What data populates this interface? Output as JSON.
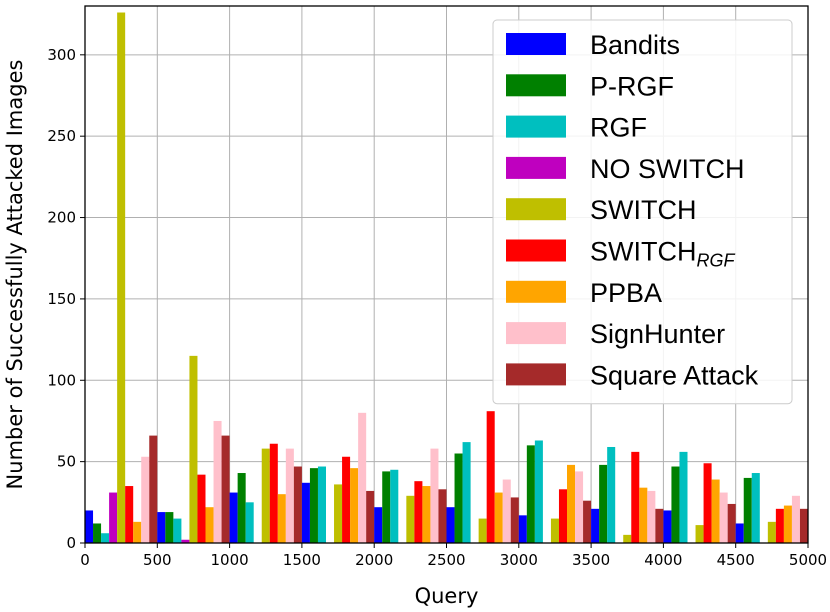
{
  "chart_data": {
    "type": "bar",
    "title": "",
    "xlabel": "Query",
    "ylabel": "Number of Successfully Attacked Images",
    "xlim": [
      0,
      5000
    ],
    "ylim": [
      0,
      330
    ],
    "xticks": [
      "0",
      "500",
      "1000",
      "1500",
      "2000",
      "2500",
      "3000",
      "3500",
      "4000",
      "4500",
      "5000"
    ],
    "yticks": [
      "0",
      "50",
      "100",
      "150",
      "200",
      "250",
      "300"
    ],
    "grid": true,
    "legend_position": "top-right",
    "bin_centers": [
      250,
      750,
      1250,
      1750,
      2250,
      2750,
      3250,
      3750,
      4250,
      4750
    ],
    "series": [
      {
        "name": "Bandits",
        "name_sub": "",
        "color": "#0000ff",
        "values": [
          20,
          19,
          31,
          37,
          22,
          22,
          17,
          21,
          20,
          12
        ]
      },
      {
        "name": "P-RGF",
        "name_sub": "",
        "color": "#008000",
        "values": [
          12,
          19,
          43,
          46,
          44,
          55,
          60,
          48,
          47,
          40
        ]
      },
      {
        "name": "RGF",
        "name_sub": "",
        "color": "#00bfbf",
        "values": [
          6,
          15,
          25,
          47,
          45,
          62,
          63,
          59,
          56,
          43
        ]
      },
      {
        "name": "NO SWITCH",
        "name_sub": "",
        "color": "#bf00bf",
        "values": [
          31,
          2,
          0,
          0,
          0,
          0,
          0,
          0,
          0,
          0
        ]
      },
      {
        "name": "SWITCH",
        "name_sub": "",
        "color": "#bfbf00",
        "values": [
          326,
          115,
          58,
          36,
          29,
          15,
          15,
          5,
          11,
          13
        ]
      },
      {
        "name": "SWITCH",
        "name_sub": "RGF",
        "color": "#ff0000",
        "values": [
          35,
          42,
          61,
          53,
          38,
          81,
          33,
          56,
          49,
          21
        ]
      },
      {
        "name": "PPBA",
        "name_sub": "",
        "color": "#ffa500",
        "values": [
          13,
          22,
          30,
          46,
          35,
          31,
          48,
          34,
          39,
          23
        ]
      },
      {
        "name": "SignHunter",
        "name_sub": "",
        "color": "#ffc0cb",
        "values": [
          53,
          75,
          58,
          80,
          58,
          39,
          44,
          32,
          31,
          29
        ]
      },
      {
        "name": "Square Attack",
        "name_sub": "",
        "color": "#a52a2a",
        "values": [
          66,
          66,
          47,
          32,
          33,
          28,
          26,
          21,
          24,
          21
        ]
      }
    ]
  }
}
